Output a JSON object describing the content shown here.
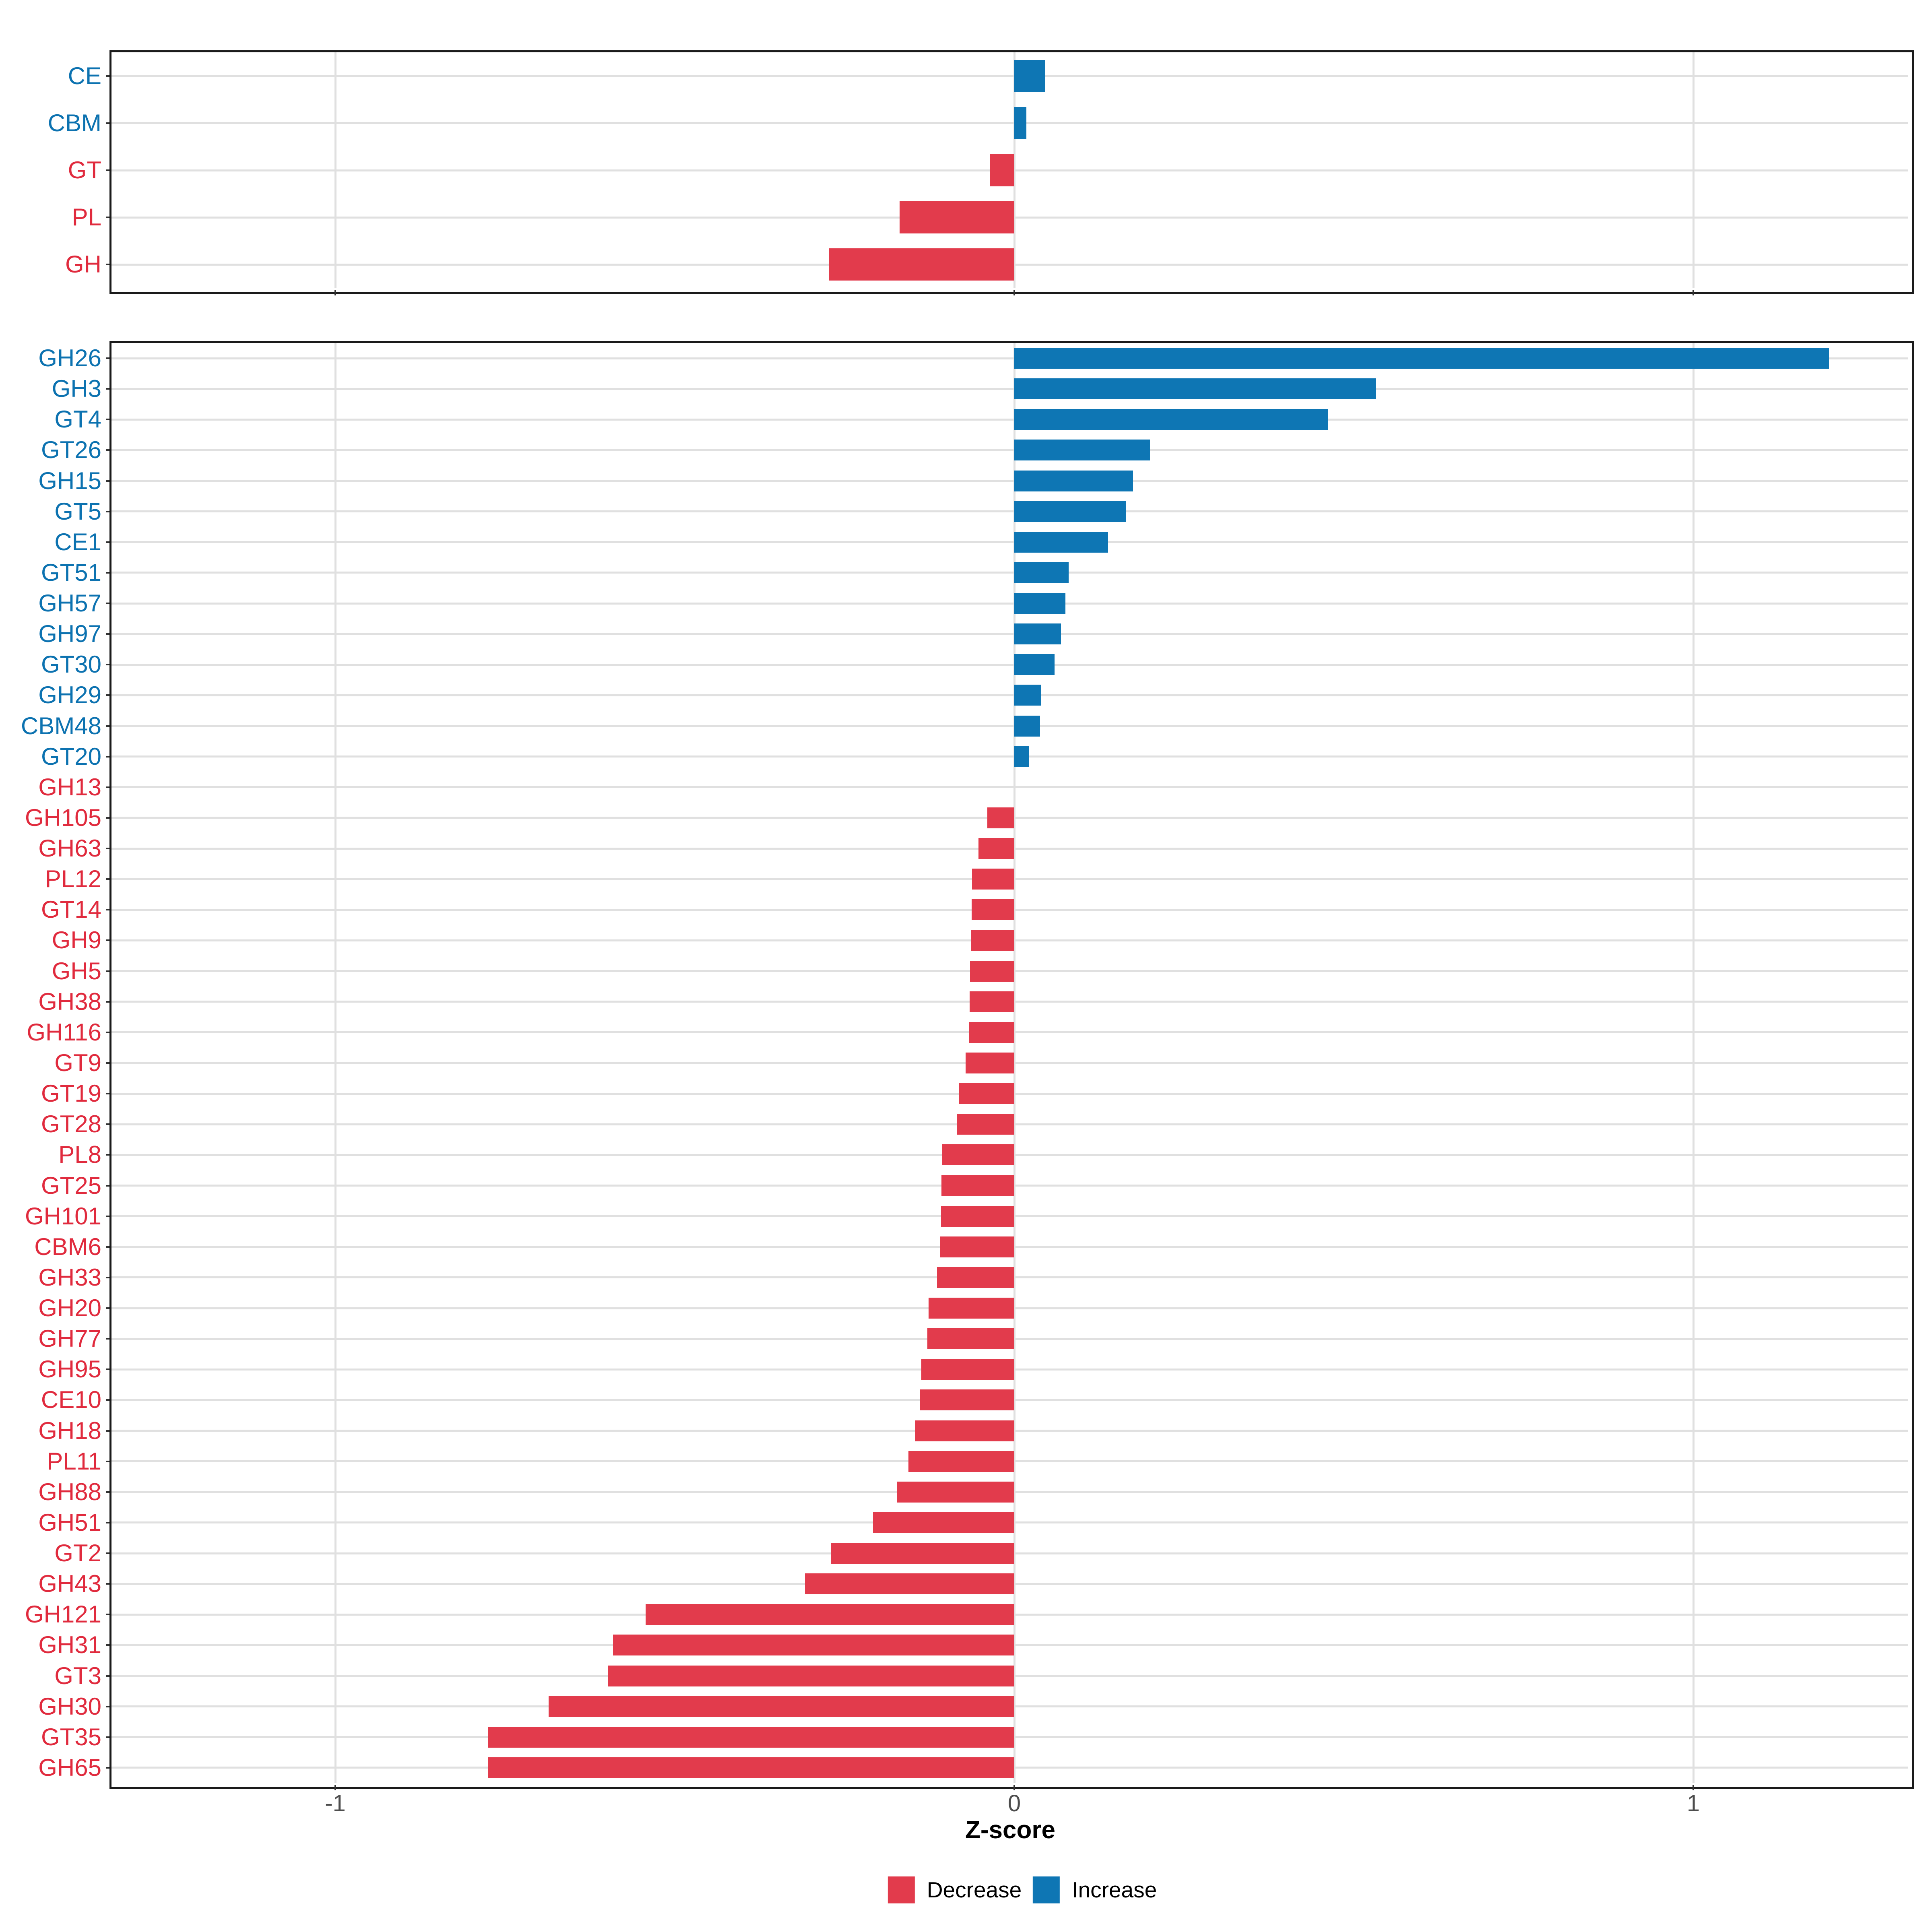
{
  "x_axis": {
    "title": "Z-score",
    "ticks": [
      -1,
      0,
      1
    ],
    "tick_labels": [
      "-1",
      "0",
      "1"
    ],
    "xlim": [
      -1.33,
      1.32
    ],
    "gridlines": [
      -1,
      0,
      1
    ]
  },
  "legend": {
    "items": [
      {
        "label": "Decrease",
        "key": "decrease"
      },
      {
        "label": "Increase",
        "key": "increase"
      }
    ]
  },
  "colors": {
    "decrease": "#E23B4C",
    "increase": "#0E76B4",
    "label_decrease": "#E02A3D",
    "label_increase": "#0C72B0",
    "tick_label": "#4d4d4d",
    "gridline": "#e0e0e0",
    "panel_border": "#1a1a1a"
  },
  "chart_data": [
    {
      "type": "bar",
      "orientation": "horizontal",
      "panel": "enzyme-classes",
      "xlabel": "Z-score",
      "xlim": [
        -1.33,
        1.32
      ],
      "grid": true,
      "legend_position": "bottom",
      "categories": [
        "CE",
        "CBM",
        "GT",
        "PL",
        "GH"
      ],
      "values": [
        0.045,
        0.018,
        -0.036,
        -0.169,
        -0.273
      ]
    },
    {
      "type": "bar",
      "orientation": "horizontal",
      "panel": "enzyme-families",
      "xlabel": "Z-score",
      "xlim": [
        -1.33,
        1.32
      ],
      "grid": true,
      "legend_position": "bottom",
      "categories": [
        "GH26",
        "GH3",
        "GT4",
        "GT26",
        "GH15",
        "GT5",
        "CE1",
        "GT51",
        "GH57",
        "GH97",
        "GT30",
        "GH29",
        "CBM48",
        "GT20",
        "GH13",
        "GH105",
        "GH63",
        "PL12",
        "GT14",
        "GH9",
        "GH5",
        "GH38",
        "GH116",
        "GT9",
        "GT19",
        "GT28",
        "PL8",
        "GT25",
        "GH101",
        "CBM6",
        "GH33",
        "GH20",
        "GH77",
        "GH95",
        "CE10",
        "GH18",
        "PL11",
        "GH88",
        "GH51",
        "GT2",
        "GH43",
        "GH121",
        "GH31",
        "GT3",
        "GH30",
        "GT35",
        "GH65"
      ],
      "values": [
        1.2,
        0.533,
        0.462,
        0.2,
        0.175,
        0.165,
        0.138,
        0.08,
        0.075,
        0.069,
        0.059,
        0.039,
        0.038,
        0.022,
        0.0,
        -0.04,
        -0.053,
        -0.062,
        -0.063,
        -0.064,
        -0.065,
        -0.066,
        -0.067,
        -0.072,
        -0.081,
        -0.085,
        -0.106,
        -0.107,
        -0.108,
        -0.109,
        -0.114,
        -0.126,
        -0.128,
        -0.137,
        -0.139,
        -0.146,
        -0.156,
        -0.173,
        -0.208,
        -0.27,
        -0.308,
        -0.543,
        -0.591,
        -0.598,
        -0.686,
        -0.775,
        -0.775
      ]
    }
  ]
}
